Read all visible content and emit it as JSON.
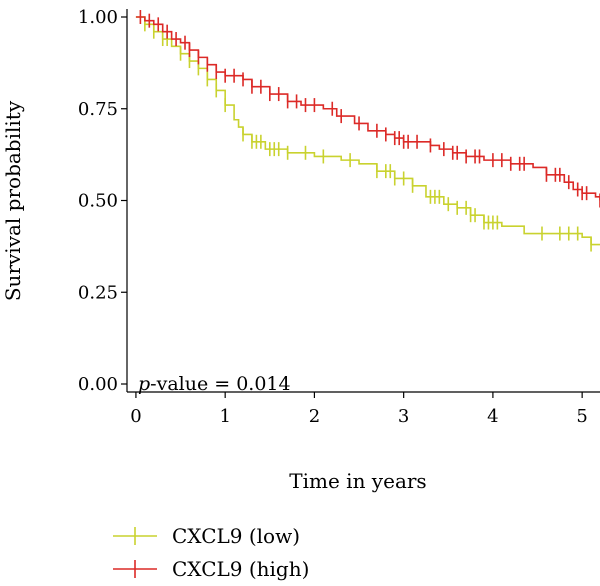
{
  "chart_data": {
    "type": "line",
    "xlabel": "Time in years",
    "ylabel": "Survival probability",
    "xlim": [
      -0.1,
      5.2
    ],
    "ylim": [
      0,
      1
    ],
    "x_ticks": [
      {
        "value": 0,
        "label": "0"
      },
      {
        "value": 1,
        "label": "1"
      },
      {
        "value": 2,
        "label": "2"
      },
      {
        "value": 3,
        "label": "3"
      },
      {
        "value": 4,
        "label": "4"
      },
      {
        "value": 5,
        "label": "5"
      }
    ],
    "y_ticks": [
      {
        "value": 0,
        "label": "0.00"
      },
      {
        "value": 0.25,
        "label": "0.25"
      },
      {
        "value": 0.5,
        "label": "0.50"
      },
      {
        "value": 0.75,
        "label": "0.75"
      },
      {
        "value": 1,
        "label": "1.00"
      }
    ],
    "annotation": {
      "prefix": "p",
      "text": "-value = 0.014"
    },
    "legend_position": "bottom-left",
    "series": [
      {
        "name": "CXCL9 (low)",
        "color": "#c9d22f",
        "steps": [
          [
            0,
            1.0
          ],
          [
            0.1,
            0.98
          ],
          [
            0.2,
            0.96
          ],
          [
            0.3,
            0.94
          ],
          [
            0.4,
            0.92
          ],
          [
            0.5,
            0.9
          ],
          [
            0.6,
            0.88
          ],
          [
            0.7,
            0.86
          ],
          [
            0.8,
            0.83
          ],
          [
            0.9,
            0.8
          ],
          [
            1.0,
            0.76
          ],
          [
            1.1,
            0.72
          ],
          [
            1.15,
            0.7
          ],
          [
            1.2,
            0.68
          ],
          [
            1.3,
            0.66
          ],
          [
            1.45,
            0.64
          ],
          [
            1.7,
            0.63
          ],
          [
            2.0,
            0.62
          ],
          [
            2.3,
            0.61
          ],
          [
            2.5,
            0.6
          ],
          [
            2.7,
            0.58
          ],
          [
            2.9,
            0.56
          ],
          [
            3.1,
            0.54
          ],
          [
            3.25,
            0.51
          ],
          [
            3.45,
            0.49
          ],
          [
            3.6,
            0.48
          ],
          [
            3.75,
            0.46
          ],
          [
            3.9,
            0.44
          ],
          [
            4.1,
            0.43
          ],
          [
            4.35,
            0.41
          ],
          [
            5.0,
            0.4
          ],
          [
            5.1,
            0.38
          ],
          [
            5.2,
            0.38
          ]
        ],
        "censor_x": [
          0.1,
          0.2,
          0.3,
          0.35,
          0.5,
          0.6,
          0.7,
          0.8,
          0.9,
          1.0,
          1.2,
          1.3,
          1.35,
          1.4,
          1.5,
          1.55,
          1.6,
          1.7,
          1.9,
          2.1,
          2.4,
          2.7,
          2.8,
          2.85,
          2.9,
          3.0,
          3.1,
          3.3,
          3.35,
          3.4,
          3.5,
          3.6,
          3.7,
          3.75,
          3.8,
          3.9,
          3.95,
          4.0,
          4.05,
          4.55,
          4.75,
          4.85,
          4.95,
          5.1
        ]
      },
      {
        "name": "CXCL9 (high)",
        "color": "#dc2a27",
        "steps": [
          [
            0,
            1.0
          ],
          [
            0.1,
            0.99
          ],
          [
            0.2,
            0.98
          ],
          [
            0.3,
            0.96
          ],
          [
            0.4,
            0.94
          ],
          [
            0.5,
            0.93
          ],
          [
            0.6,
            0.91
          ],
          [
            0.7,
            0.89
          ],
          [
            0.8,
            0.87
          ],
          [
            0.9,
            0.85
          ],
          [
            1.0,
            0.84
          ],
          [
            1.2,
            0.83
          ],
          [
            1.3,
            0.81
          ],
          [
            1.5,
            0.79
          ],
          [
            1.7,
            0.77
          ],
          [
            1.85,
            0.76
          ],
          [
            2.1,
            0.75
          ],
          [
            2.25,
            0.73
          ],
          [
            2.45,
            0.71
          ],
          [
            2.6,
            0.69
          ],
          [
            2.8,
            0.68
          ],
          [
            2.9,
            0.67
          ],
          [
            3.0,
            0.66
          ],
          [
            3.3,
            0.65
          ],
          [
            3.4,
            0.64
          ],
          [
            3.55,
            0.63
          ],
          [
            3.7,
            0.62
          ],
          [
            3.9,
            0.61
          ],
          [
            4.2,
            0.6
          ],
          [
            4.45,
            0.59
          ],
          [
            4.6,
            0.57
          ],
          [
            4.8,
            0.55
          ],
          [
            4.9,
            0.53
          ],
          [
            5.0,
            0.52
          ],
          [
            5.15,
            0.51
          ],
          [
            5.2,
            0.5
          ]
        ],
        "censor_x": [
          0.05,
          0.15,
          0.25,
          0.35,
          0.45,
          0.55,
          0.6,
          0.7,
          0.8,
          0.9,
          1.0,
          1.1,
          1.2,
          1.3,
          1.4,
          1.5,
          1.6,
          1.7,
          1.8,
          1.9,
          2.0,
          2.2,
          2.3,
          2.5,
          2.7,
          2.8,
          2.9,
          2.95,
          3.0,
          3.05,
          3.15,
          3.3,
          3.45,
          3.55,
          3.6,
          3.7,
          3.8,
          3.85,
          4.0,
          4.1,
          4.2,
          4.3,
          4.35,
          4.6,
          4.7,
          4.75,
          4.85,
          4.95,
          5.0,
          5.05,
          5.2
        ]
      }
    ]
  }
}
